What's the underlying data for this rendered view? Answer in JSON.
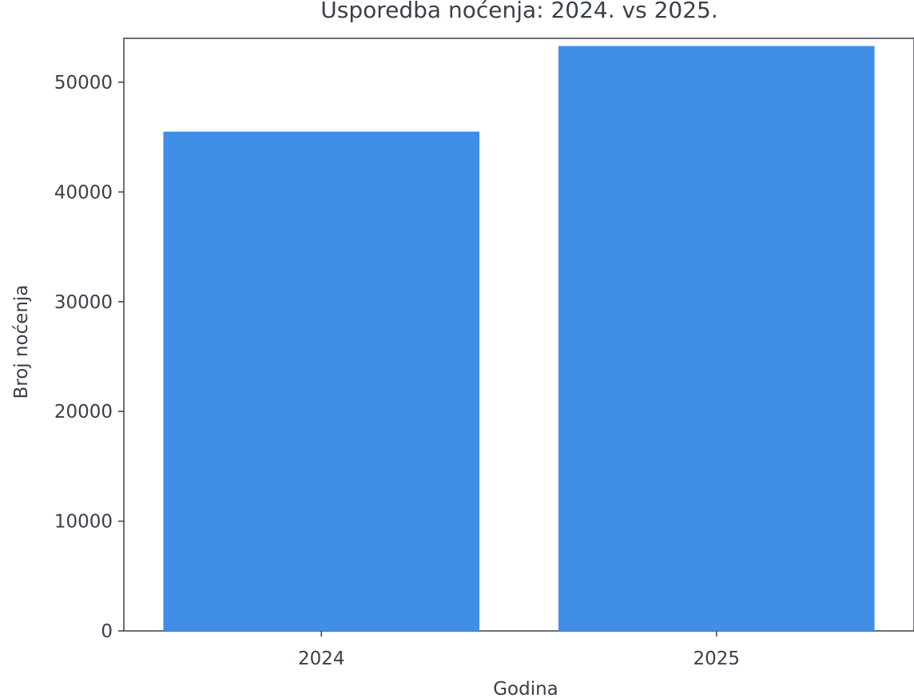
{
  "chart_data": {
    "type": "bar",
    "title": "Usporedba noćenja: 2024. vs 2025.",
    "xlabel": "Godina",
    "ylabel": "Broj noćenja",
    "categories": [
      "2024",
      "2025"
    ],
    "series": [
      {
        "values": [
          45500,
          53300
        ]
      }
    ],
    "ylim": [
      0,
      54000
    ],
    "yticks": [
      0,
      10000,
      20000,
      30000,
      40000,
      50000
    ],
    "ytick_labels": [
      "0",
      "10000",
      "20000",
      "30000",
      "40000",
      "50000"
    ],
    "grid": false,
    "legend": "none",
    "bar_color": "#3f8fe8",
    "axis_color": "#3a3f4b"
  }
}
